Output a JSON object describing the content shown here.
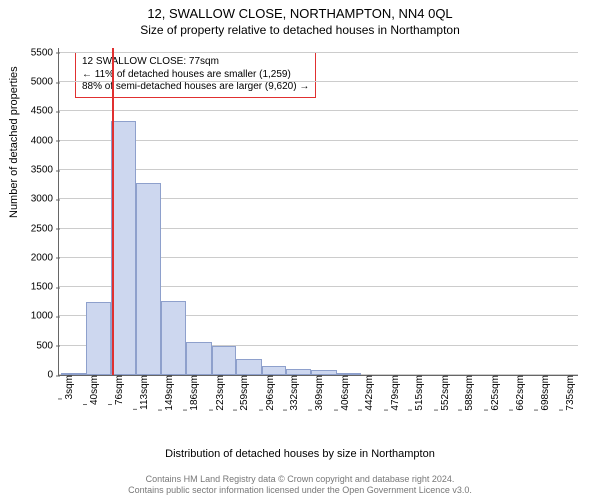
{
  "title": "12, SWALLOW CLOSE, NORTHAMPTON, NN4 0QL",
  "subtitle": "Size of property relative to detached houses in Northampton",
  "ylabel": "Number of detached properties",
  "xlabel": "Distribution of detached houses by size in Northampton",
  "chart": {
    "type": "histogram",
    "bar_color": "#cdd7ef",
    "bar_border_color": "#8ea0cc",
    "marker_color": "#e03030",
    "grid_color": "#cccccc",
    "axis_color": "#666666",
    "background_color": "#ffffff",
    "xlim": [
      0,
      760
    ],
    "ylim": [
      0,
      5600
    ],
    "yticks": [
      0,
      500,
      1000,
      1500,
      2000,
      2500,
      3000,
      3500,
      4000,
      4500,
      5000,
      5500
    ],
    "xticks": [
      3,
      40,
      76,
      113,
      149,
      186,
      223,
      259,
      296,
      332,
      369,
      406,
      442,
      479,
      515,
      552,
      588,
      625,
      662,
      698,
      735
    ],
    "xtick_unit": "sqm",
    "bin_edges": [
      3,
      40,
      76,
      113,
      149,
      186,
      223,
      259,
      296,
      332,
      369,
      406,
      442,
      479,
      515,
      552,
      588,
      625,
      662,
      698,
      735
    ],
    "values": [
      10,
      1250,
      4330,
      3280,
      1260,
      560,
      490,
      270,
      150,
      100,
      80,
      30,
      0,
      0,
      0,
      0,
      0,
      0,
      0,
      0
    ],
    "marker_x": 77
  },
  "annotation": {
    "line1": "12 SWALLOW CLOSE: 77sqm",
    "line2": "← 11% of detached houses are smaller (1,259)",
    "line3": "88% of semi-detached houses are larger (9,620) →"
  },
  "footer": {
    "line1": "Contains HM Land Registry data © Crown copyright and database right 2024.",
    "line2": "Contains public sector information licensed under the Open Government Licence v3.0."
  }
}
